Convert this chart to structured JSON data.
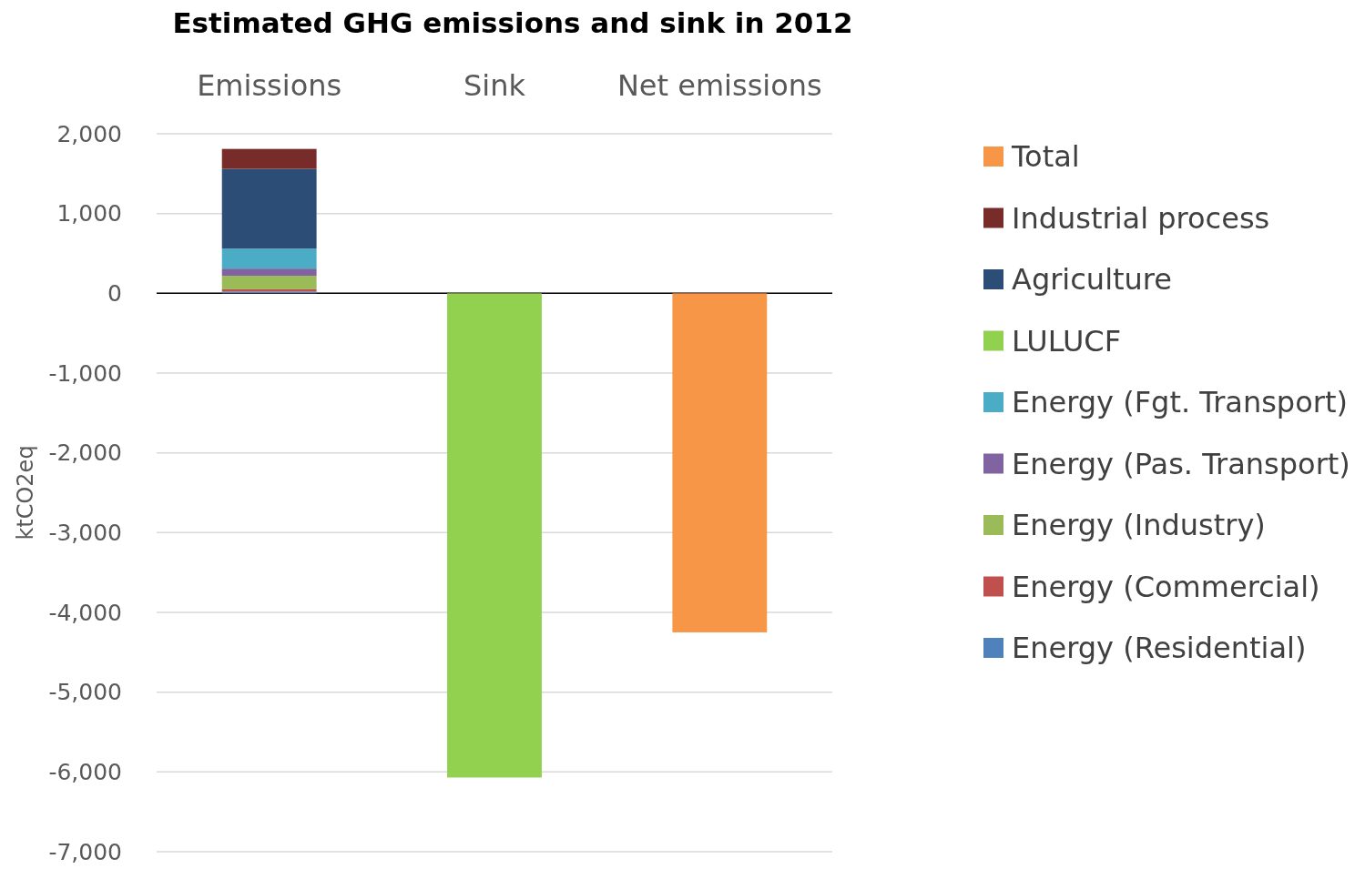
{
  "chart_data": {
    "type": "bar",
    "title": "Estimated GHG emissions and sink in 2012",
    "ylabel": "ktCO2eq",
    "categories": [
      "Emissions",
      "Sink",
      "Net emissions"
    ],
    "stacked": true,
    "series": [
      {
        "name": "Energy (Residential)",
        "color": "#4f81bd",
        "values": [
          20,
          null,
          null
        ]
      },
      {
        "name": "Energy (Commercial)",
        "color": "#c0504d",
        "values": [
          30,
          null,
          null
        ]
      },
      {
        "name": "Energy (Industry)",
        "color": "#9bbb59",
        "values": [
          170,
          null,
          null
        ]
      },
      {
        "name": "Energy (Pas. Transport)",
        "color": "#8064a2",
        "values": [
          90,
          null,
          null
        ]
      },
      {
        "name": "Energy (Fgt. Transport)",
        "color": "#4bacc6",
        "values": [
          250,
          null,
          null
        ]
      },
      {
        "name": "LULUCF",
        "color": "#92d050",
        "values": [
          null,
          -6070,
          null
        ]
      },
      {
        "name": "Agriculture",
        "color": "#2c4d75",
        "values": [
          1000,
          null,
          null
        ]
      },
      {
        "name": "Industrial process",
        "color": "#772c2a",
        "values": [
          250,
          null,
          null
        ]
      },
      {
        "name": "Total",
        "color": "#f79646",
        "values": [
          null,
          null,
          -4250
        ]
      }
    ],
    "ylim": [
      -7000,
      2000
    ],
    "yticks": [
      {
        "value": -7000,
        "label": "-7,000"
      },
      {
        "value": -6000,
        "label": "-6,000"
      },
      {
        "value": -5000,
        "label": "-5,000"
      },
      {
        "value": -4000,
        "label": "-4,000"
      },
      {
        "value": -3000,
        "label": "-3,000"
      },
      {
        "value": -2000,
        "label": "-2,000"
      },
      {
        "value": -1000,
        "label": "-1,000"
      },
      0,
      {
        "value": 1000,
        "label": "1,000"
      },
      {
        "value": 2000,
        "label": "2,000"
      }
    ],
    "grid": "y",
    "legend": "right"
  }
}
